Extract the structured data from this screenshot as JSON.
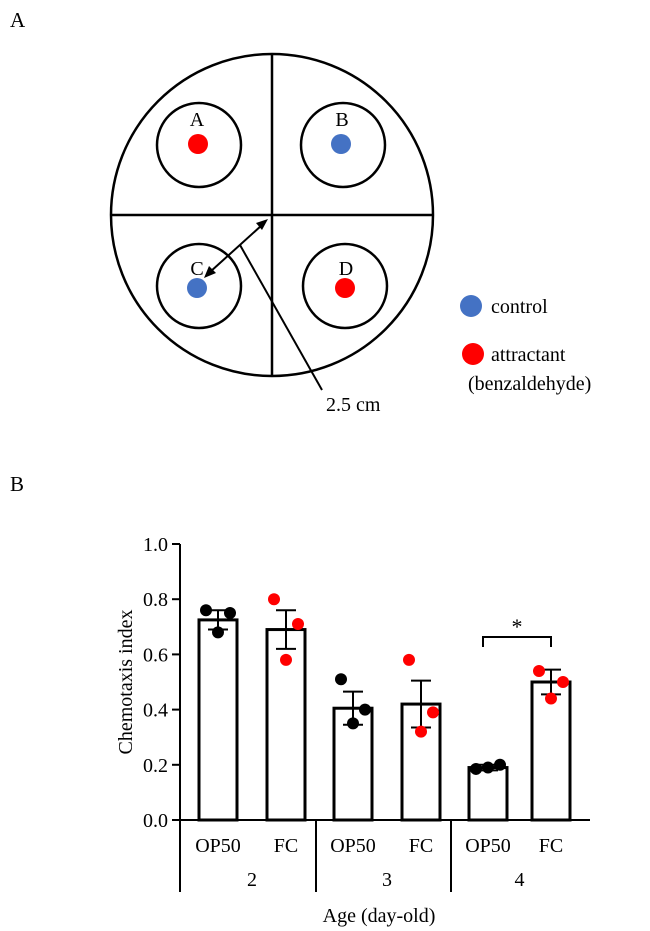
{
  "panel_a": {
    "panel_label": "A",
    "wells": [
      "A",
      "B",
      "C",
      "D"
    ],
    "distance_label": "2.5 cm",
    "legend": [
      {
        "label": "control",
        "color": "#4472c4"
      },
      {
        "label": "attractant",
        "sublabel": "(benzaldehyde)",
        "color": "#ff0000"
      }
    ]
  },
  "panel_b": {
    "panel_label": "B"
  },
  "chart_data": {
    "type": "bar",
    "ylabel": "Chemotaxis index",
    "xlabel": "Age (day-old)",
    "ylim": [
      0,
      1.0
    ],
    "yticks": [
      "0.0",
      "0.2",
      "0.4",
      "0.6",
      "0.8",
      "1.0"
    ],
    "groups": [
      "2",
      "3",
      "4"
    ],
    "bar_labels": [
      "OP50",
      "FC"
    ],
    "bars": [
      {
        "group": "2",
        "label": "OP50",
        "mean": 0.725,
        "sem": 0.035,
        "points": [
          0.76,
          0.75,
          0.68
        ],
        "color": "#000000"
      },
      {
        "group": "2",
        "label": "FC",
        "mean": 0.69,
        "sem": 0.07,
        "points": [
          0.8,
          0.71,
          0.58
        ],
        "color": "#ff0000"
      },
      {
        "group": "3",
        "label": "OP50",
        "mean": 0.405,
        "sem": 0.06,
        "points": [
          0.51,
          0.4,
          0.35
        ],
        "color": "#000000"
      },
      {
        "group": "3",
        "label": "FC",
        "mean": 0.42,
        "sem": 0.085,
        "points": [
          0.58,
          0.39,
          0.32
        ],
        "color": "#ff0000"
      },
      {
        "group": "4",
        "label": "OP50",
        "mean": 0.19,
        "sem": 0.01,
        "points": [
          0.185,
          0.2,
          0.19
        ],
        "color": "#000000"
      },
      {
        "group": "4",
        "label": "FC",
        "mean": 0.5,
        "sem": 0.045,
        "points": [
          0.54,
          0.5,
          0.44
        ],
        "color": "#ff0000"
      }
    ],
    "annotations": [
      {
        "text": "*",
        "between": [
          "4 OP50",
          "4 FC"
        ]
      }
    ]
  }
}
